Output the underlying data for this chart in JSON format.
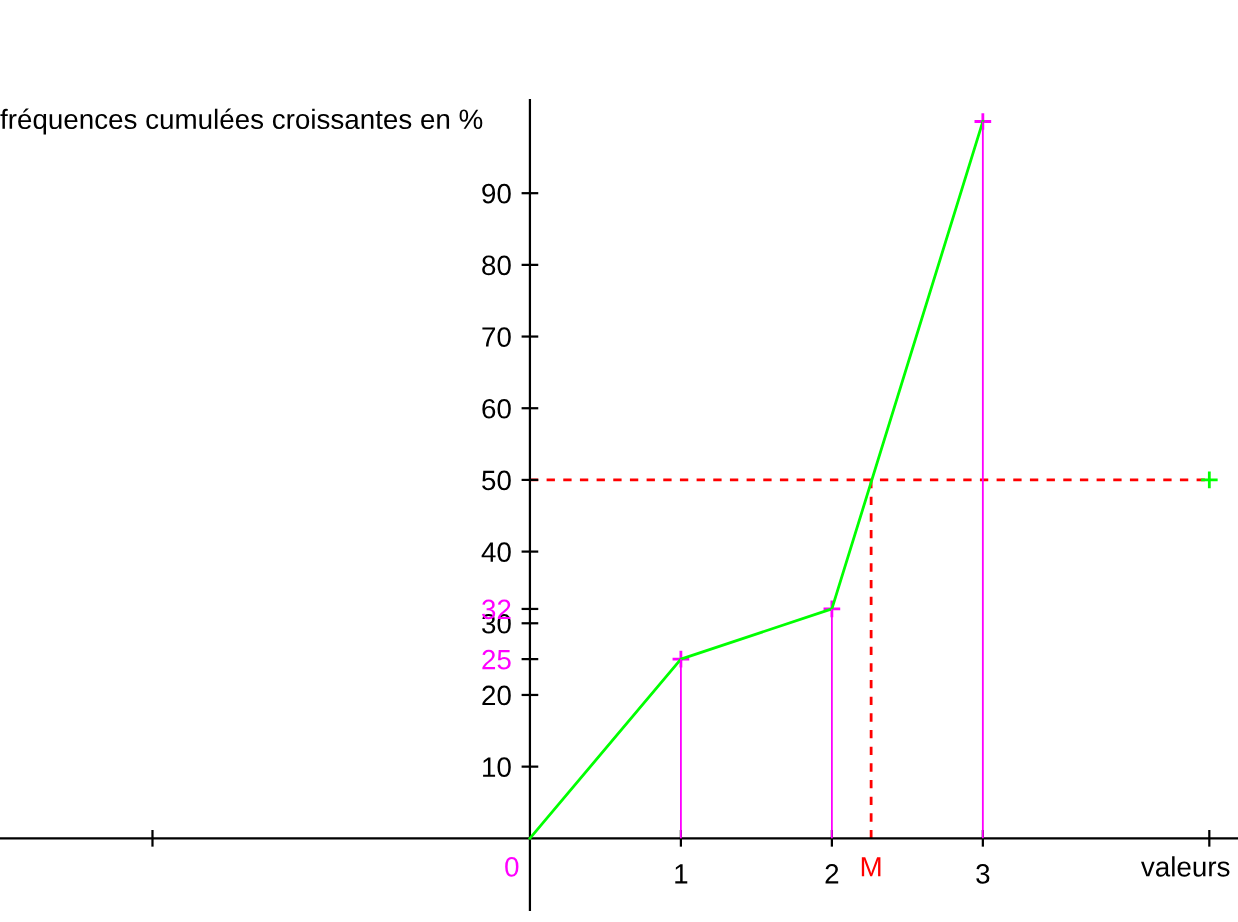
{
  "chart_data": {
    "type": "line",
    "xlabel": "valeurs",
    "ylabel": "fréquences cumulées croissantes en %",
    "series": [
      {
        "color": "#00ff00",
        "x": [
          0,
          1,
          2,
          3
        ],
        "values": [
          0,
          25,
          32,
          100
        ]
      },
      {
        "type": "bar",
        "color": "#ff00ff",
        "x": [
          1,
          2,
          3
        ],
        "values": [
          25,
          32,
          100
        ]
      },
      {
        "type": "scatter",
        "color": "#00ff00",
        "x": [
          4.5
        ],
        "values": [
          50
        ]
      }
    ],
    "xlim": [
      -3.51,
      4.69
    ],
    "ylim": [
      -10,
      103
    ],
    "xticks": [
      {
        "value": -2.5,
        "label": null
      },
      1,
      2,
      3,
      {
        "value": 4.5,
        "label": null
      }
    ],
    "yticks": [
      10,
      20,
      25,
      30,
      32,
      40,
      50,
      60,
      70,
      80,
      90
    ],
    "ref_lines": [
      {
        "axis": "y",
        "value": 50,
        "label": null,
        "color": "#ff0000",
        "line_style": "dashed"
      },
      {
        "axis": "x",
        "value": 2.26,
        "label": "M",
        "color": "#ff0000",
        "line_style": "dashed"
      }
    ],
    "annotations": [
      {
        "text": "0",
        "x": 0,
        "y": 0
      }
    ],
    "marker": "cross",
    "grid": false
  }
}
